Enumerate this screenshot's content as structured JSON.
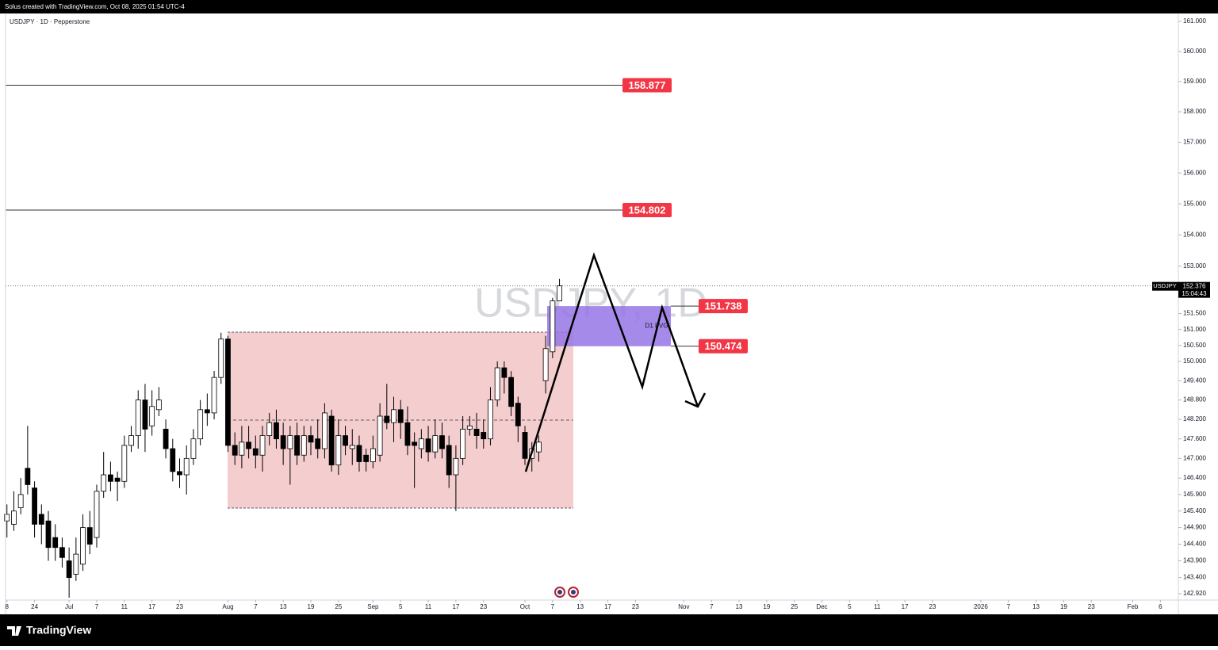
{
  "chart_data": {
    "type": "candlestick",
    "header": "Solus created with TradingView.com, Oct 08, 2025 01:54 UTC-4",
    "title": "USDJPY · 1D · Pepperstone",
    "watermark": "USDJPY, 1D",
    "brand": "TradingView",
    "log_scale": true,
    "ylim": [
      142.73,
      161.24
    ],
    "yticks": [
      {
        "value": 161,
        "label": "161.000"
      },
      {
        "value": 160,
        "label": "160.000"
      },
      {
        "value": 159,
        "label": "159.000"
      },
      {
        "value": 158,
        "label": "158.000"
      },
      {
        "value": 157,
        "label": "157.000"
      },
      {
        "value": 156,
        "label": "156.000"
      },
      {
        "value": 155,
        "label": "155.000"
      },
      {
        "value": 154,
        "label": "154.000"
      },
      {
        "value": 153,
        "label": "153.000"
      },
      {
        "value": 151.5,
        "label": "151.500"
      },
      {
        "value": 151,
        "label": "151.000"
      },
      {
        "value": 150.5,
        "label": "150.500"
      },
      {
        "value": 150,
        "label": "150.000"
      },
      {
        "value": 149.4,
        "label": "149.400"
      },
      {
        "value": 148.8,
        "label": "148.800"
      },
      {
        "value": 148.2,
        "label": "148.200"
      },
      {
        "value": 147.6,
        "label": "147.600"
      },
      {
        "value": 147,
        "label": "147.000"
      },
      {
        "value": 146.4,
        "label": "146.400"
      },
      {
        "value": 145.9,
        "label": "145.900"
      },
      {
        "value": 145.4,
        "label": "145.400"
      },
      {
        "value": 144.9,
        "label": "144.900"
      },
      {
        "value": 144.4,
        "label": "144.400"
      },
      {
        "value": 143.9,
        "label": "143.900"
      },
      {
        "value": 143.4,
        "label": "143.400"
      },
      {
        "value": 142.92,
        "label": "142.920"
      }
    ],
    "xlim": [
      -9.2,
      160.6
    ],
    "xticks": [
      {
        "value": -9,
        "label": "8"
      },
      {
        "value": -5,
        "label": "24"
      },
      {
        "value": 0,
        "label": "Jul"
      },
      {
        "value": 4,
        "label": "7"
      },
      {
        "value": 8,
        "label": "11"
      },
      {
        "value": 12,
        "label": "17"
      },
      {
        "value": 16,
        "label": "23"
      },
      {
        "value": 23,
        "label": "Aug"
      },
      {
        "value": 27,
        "label": "7"
      },
      {
        "value": 31,
        "label": "13"
      },
      {
        "value": 35,
        "label": "19"
      },
      {
        "value": 39,
        "label": "25"
      },
      {
        "value": 44,
        "label": "Sep"
      },
      {
        "value": 48,
        "label": "5"
      },
      {
        "value": 52,
        "label": "11"
      },
      {
        "value": 56,
        "label": "17"
      },
      {
        "value": 60,
        "label": "23"
      },
      {
        "value": 66,
        "label": "Oct"
      },
      {
        "value": 70,
        "label": "7"
      },
      {
        "value": 74,
        "label": "13"
      },
      {
        "value": 78,
        "label": "17"
      },
      {
        "value": 82,
        "label": "23"
      },
      {
        "value": 89,
        "label": "Nov"
      },
      {
        "value": 93,
        "label": "7"
      },
      {
        "value": 97,
        "label": "13"
      },
      {
        "value": 101,
        "label": "19"
      },
      {
        "value": 105,
        "label": "25"
      },
      {
        "value": 109,
        "label": "Dec"
      },
      {
        "value": 113,
        "label": "5"
      },
      {
        "value": 117,
        "label": "11"
      },
      {
        "value": 121,
        "label": "17"
      },
      {
        "value": 125,
        "label": "23"
      },
      {
        "value": 132,
        "label": "2026"
      },
      {
        "value": 136,
        "label": "7"
      },
      {
        "value": 140,
        "label": "13"
      },
      {
        "value": 144,
        "label": "19"
      },
      {
        "value": 148,
        "label": "23"
      },
      {
        "value": 154,
        "label": "Feb"
      },
      {
        "value": 158,
        "label": "6"
      }
    ],
    "x": [
      -9,
      -8,
      -7,
      -6,
      -5,
      -4,
      -3,
      -2,
      -1,
      0,
      1,
      2,
      3,
      4,
      5,
      6,
      7,
      8,
      9,
      10,
      11,
      12,
      13,
      14,
      15,
      16,
      17,
      18,
      19,
      20,
      21,
      22,
      23,
      24,
      25,
      26,
      27,
      28,
      29,
      30,
      31,
      32,
      33,
      34,
      35,
      36,
      37,
      38,
      39,
      40,
      41,
      42,
      43,
      44,
      45,
      46,
      47,
      48,
      49,
      50,
      51,
      52,
      53,
      54,
      55,
      56,
      57,
      58,
      59,
      60,
      61,
      62,
      63,
      64,
      65,
      66,
      67,
      68,
      69,
      70,
      71
    ],
    "open": [
      145.1,
      145.0,
      145.5,
      146.7,
      146.1,
      145.3,
      145.1,
      144.6,
      144.3,
      143.9,
      143.5,
      143.8,
      144.9,
      144.6,
      146.0,
      146.5,
      146.4,
      146.3,
      147.4,
      147.7,
      148.8,
      148.0,
      148.5,
      147.9,
      147.3,
      146.6,
      146.5,
      147.0,
      147.6,
      148.5,
      148.4,
      149.5,
      150.7,
      147.4,
      147.1,
      147.5,
      147.3,
      147.1,
      147.7,
      148.1,
      147.7,
      147.3,
      147.7,
      147.1,
      147.7,
      147.6,
      147.3,
      148.3,
      146.8,
      147.7,
      147.3,
      147.4,
      147.1,
      146.9,
      147.1,
      148.3,
      148.1,
      148.5,
      148.1,
      147.5,
      147.3,
      147.6,
      147.2,
      147.7,
      147.4,
      146.5,
      147.0,
      147.9,
      147.9,
      147.8,
      147.6,
      148.8,
      149.8,
      149.5,
      148.7,
      147.8,
      147.0,
      147.2,
      149.4,
      150.3,
      151.9
    ],
    "high": [
      145.6,
      146.0,
      146.4,
      148.0,
      146.3,
      145.6,
      145.4,
      145.0,
      144.6,
      144.3,
      144.6,
      145.3,
      145.4,
      146.2,
      147.2,
      146.9,
      146.6,
      147.7,
      148.0,
      149.1,
      149.3,
      149.1,
      149.2,
      148.2,
      147.6,
      147.0,
      147.4,
      147.9,
      148.8,
      149.0,
      149.7,
      150.9,
      150.8,
      147.8,
      148.0,
      148.0,
      147.7,
      148.0,
      148.4,
      148.5,
      148.1,
      148.0,
      148.1,
      148.0,
      148.0,
      148.2,
      148.7,
      148.5,
      148.2,
      148.0,
      147.9,
      147.7,
      147.3,
      147.7,
      148.7,
      149.3,
      148.9,
      148.8,
      148.6,
      147.8,
      147.9,
      148.0,
      148.2,
      148.1,
      147.7,
      147.4,
      148.3,
      148.3,
      148.4,
      148.2,
      149.2,
      150.0,
      150.0,
      149.7,
      148.9,
      148.0,
      147.5,
      147.7,
      150.8,
      152.0,
      152.6
    ],
    "low": [
      144.6,
      144.8,
      145.3,
      145.9,
      144.6,
      144.4,
      143.9,
      143.9,
      143.7,
      142.8,
      143.3,
      143.6,
      144.1,
      144.3,
      145.8,
      146.0,
      145.7,
      146.1,
      147.2,
      147.3,
      147.2,
      147.7,
      148.3,
      147.0,
      146.3,
      146.1,
      145.9,
      146.8,
      147.4,
      148.0,
      148.2,
      149.3,
      147.2,
      146.8,
      146.7,
      147.0,
      146.7,
      146.6,
      147.4,
      147.3,
      146.8,
      146.2,
      146.8,
      146.9,
      147.1,
      147.0,
      147.0,
      146.6,
      146.5,
      147.1,
      146.8,
      146.6,
      146.6,
      146.7,
      146.9,
      147.9,
      147.5,
      147.6,
      147.1,
      146.1,
      147.0,
      146.9,
      147.0,
      147.0,
      146.1,
      145.4,
      146.8,
      147.7,
      147.3,
      147.3,
      147.4,
      148.6,
      149.0,
      148.3,
      147.5,
      146.8,
      146.6,
      146.9,
      149.0,
      150.1,
      151.9
    ],
    "close": [
      145.3,
      145.4,
      145.9,
      146.2,
      145.0,
      145.0,
      144.3,
      144.3,
      144.0,
      143.4,
      144.1,
      144.9,
      144.4,
      146.0,
      146.5,
      146.3,
      146.3,
      147.4,
      147.7,
      148.8,
      147.9,
      148.6,
      148.8,
      147.3,
      146.6,
      146.5,
      147.0,
      147.6,
      148.5,
      148.4,
      149.5,
      150.7,
      147.4,
      147.1,
      147.5,
      147.3,
      147.1,
      147.7,
      148.1,
      147.6,
      147.3,
      147.7,
      147.1,
      147.7,
      147.5,
      147.3,
      148.4,
      146.8,
      147.7,
      147.4,
      147.4,
      146.9,
      146.9,
      147.3,
      148.3,
      148.1,
      148.5,
      148.1,
      147.4,
      147.4,
      147.6,
      147.2,
      147.7,
      147.3,
      146.5,
      147.0,
      147.9,
      148.0,
      147.7,
      147.6,
      148.8,
      149.8,
      149.5,
      148.6,
      148.0,
      147.0,
      147.3,
      147.5,
      150.4,
      151.9,
      152.376
    ],
    "up_color": "#ffffff",
    "down_color": "#000000",
    "levels": [
      158.877,
      154.802
    ],
    "level_color": "#f23645",
    "zone": {
      "name": "D1 FVG",
      "high": 151.738,
      "low": 150.474,
      "color": "#9575e6"
    },
    "last_price": {
      "symbol": "USDJPY",
      "value": 152.376,
      "countdown": "15:04:43"
    }
  }
}
